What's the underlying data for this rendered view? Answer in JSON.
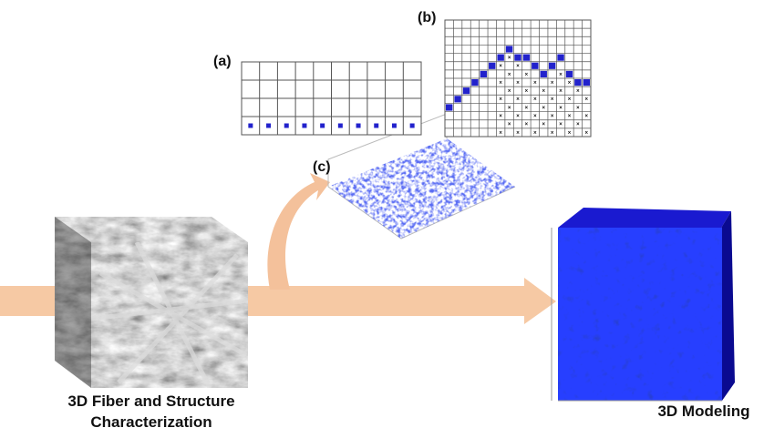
{
  "labels": {
    "a": "(a)",
    "b": "(b)",
    "c": "(c)"
  },
  "captions": {
    "left_line1": "3D Fiber and Structure",
    "left_line2": "Characterization",
    "right": "3D Modeling"
  }
}
